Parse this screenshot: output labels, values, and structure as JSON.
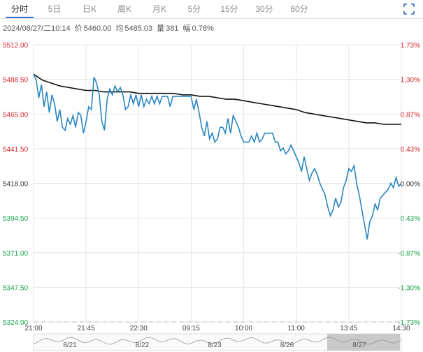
{
  "tabs": [
    {
      "label": "分时",
      "active": true
    },
    {
      "label": "5日",
      "active": false
    },
    {
      "label": "日K",
      "active": false
    },
    {
      "label": "周K",
      "active": false
    },
    {
      "label": "月K",
      "active": false
    },
    {
      "label": "5分",
      "active": false
    },
    {
      "label": "15分",
      "active": false
    },
    {
      "label": "30分",
      "active": false
    },
    {
      "label": "60分",
      "active": false
    }
  ],
  "expand_icon": "fullscreen-icon",
  "info": {
    "datetime": "2024/08/27/二10:14",
    "price_label": "价",
    "price": "5460.00",
    "avg_label": "均",
    "avg": "5485.03",
    "vol_label": "量",
    "vol": "381",
    "change_label": "幅",
    "change": "0.78%"
  },
  "colors": {
    "price_line": "#2a86c0",
    "avg_line": "#111111",
    "up": "#d9262b",
    "down": "#18a34a",
    "base": "#333333",
    "grid": "#e6e6e6"
  },
  "chart_data": {
    "type": "line",
    "ylim": [
      5324.0,
      5512.0
    ],
    "left_ticks": [
      "5512.00",
      "5488.50",
      "5465.00",
      "5441.50",
      "5418.00",
      "5394.50",
      "5371.00",
      "5347.50",
      "5324.00"
    ],
    "right_ticks": [
      "1.73%",
      "1.30%",
      "0.87%",
      "0.43%",
      "0.00%",
      "0.43%",
      "-0.87%",
      "-1.30%",
      "-1.73%"
    ],
    "time_ticks": [
      "21:00",
      "21:45",
      "22:30",
      "09:15",
      "10:00",
      "11:00",
      "13:45",
      "14:30"
    ],
    "navigator_dates": [
      "8/21",
      "8/22",
      "8/23",
      "8/26",
      "8/27"
    ],
    "series": [
      {
        "key": "price",
        "values": [
          5492,
          5488,
          5476,
          5485,
          5470,
          5480,
          5466,
          5478,
          5472,
          5460,
          5468,
          5456,
          5454,
          5462,
          5458,
          5464,
          5456,
          5466,
          5464,
          5452,
          5460,
          5470,
          5468,
          5490,
          5486,
          5478,
          5460,
          5454,
          5475,
          5482,
          5478,
          5484,
          5480,
          5483,
          5478,
          5468,
          5470,
          5478,
          5472,
          5478,
          5470,
          5478,
          5470,
          5475,
          5472,
          5477,
          5472,
          5477,
          5472,
          5477,
          5477,
          5477,
          5470,
          5477,
          5477,
          5477,
          5477,
          5477,
          5477,
          5477,
          5477,
          5468,
          5475,
          5466,
          5456,
          5450,
          5460,
          5448,
          5452,
          5446,
          5448,
          5456,
          5456,
          5452,
          5462,
          5452,
          5464,
          5460,
          5456,
          5450,
          5446,
          5446,
          5446,
          5450,
          5446,
          5452,
          5446,
          5448,
          5452,
          5452,
          5452,
          5452,
          5446,
          5446,
          5440,
          5442,
          5438,
          5440,
          5444,
          5440,
          5436,
          5432,
          5426,
          5436,
          5428,
          5420,
          5425,
          5428,
          5424,
          5418,
          5414,
          5410,
          5402,
          5396,
          5400,
          5408,
          5402,
          5405,
          5415,
          5420,
          5428,
          5426,
          5430,
          5418,
          5410,
          5400,
          5390,
          5380,
          5392,
          5396,
          5404,
          5400,
          5408,
          5410,
          5412,
          5414,
          5418,
          5415,
          5422,
          5416,
          5418
        ]
      },
      {
        "key": "avg",
        "values": [
          5492,
          5488,
          5486,
          5484,
          5483,
          5482,
          5481,
          5481,
          5480,
          5480,
          5480,
          5480,
          5479,
          5479,
          5479,
          5479,
          5479,
          5478,
          5478,
          5477,
          5477,
          5476,
          5475,
          5475,
          5474,
          5473,
          5472,
          5471,
          5470,
          5469,
          5468,
          5466,
          5465,
          5464,
          5463,
          5462,
          5461,
          5460,
          5459,
          5459,
          5458,
          5458,
          5458
        ]
      }
    ]
  }
}
